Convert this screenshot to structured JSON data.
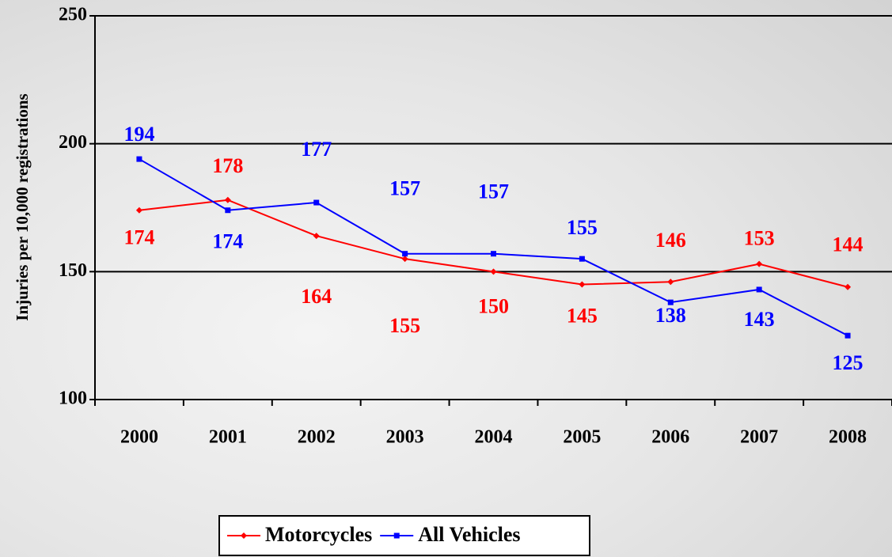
{
  "chart_data": {
    "type": "line",
    "y_label": "Injuries per 10,000 registrations",
    "categories": [
      "2000",
      "2001",
      "2002",
      "2003",
      "2004",
      "2005",
      "2006",
      "2007",
      "2008"
    ],
    "series": [
      {
        "name": "Motorcycles",
        "color": "#ff0000",
        "marker": "diamond",
        "values": [
          174,
          178,
          164,
          155,
          150,
          145,
          146,
          153,
          144
        ]
      },
      {
        "name": "All Vehicles",
        "color": "#0000ff",
        "marker": "square",
        "values": [
          194,
          174,
          177,
          157,
          157,
          155,
          138,
          143,
          125
        ]
      }
    ],
    "ylim": [
      100,
      250
    ],
    "yticks": [
      100,
      150,
      200,
      250
    ],
    "grid": true,
    "legend": "bottom"
  }
}
